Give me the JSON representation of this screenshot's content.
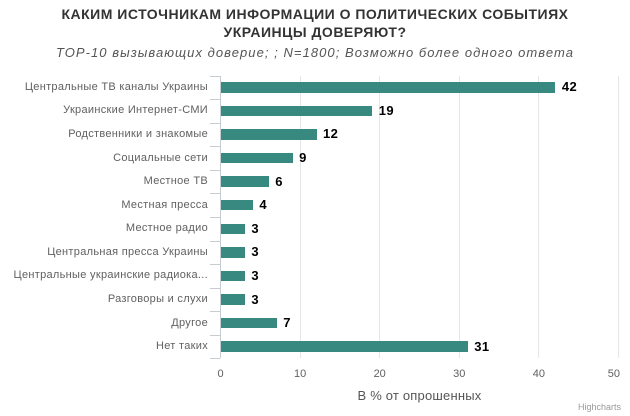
{
  "title": "КАКИМ ИСТОЧНИКАМ ИНФОРМАЦИИ О ПОЛИТИЧЕСКИХ СОБЫТИЯХ УКРАИНЦЫ ДОВЕРЯЮТ?",
  "subtitle": "TOP-10 вызывающих доверие; ; N=1800; Возможно более одного ответа",
  "credits": "Highcharts",
  "chart_data": {
    "type": "bar",
    "title": "КАКИМ ИСТОЧНИКАМ ИНФОРМАЦИИ О ПОЛИТИЧЕСКИХ СОБЫТИЯХ УКРАИНЦЫ ДОВЕРЯЮТ?",
    "subtitle": "TOP-10 вызывающих доверие; ; N=1800; Возможно более одного ответа",
    "categories": [
      "Центральные ТВ каналы Украины",
      "Украинские Интернет-СМИ",
      "Родственники и знакомые",
      "Социальные сети",
      "Местное ТВ",
      "Местная пресса",
      "Местное радио",
      "Центральная пресса Украины",
      "Центральные украинские радиока...",
      "Разговоры и слухи",
      "Другое",
      "Нет таких"
    ],
    "values": [
      42,
      19,
      12,
      9,
      6,
      4,
      3,
      3,
      3,
      3,
      7,
      31
    ],
    "xlabel": "В % от опрошенных",
    "ylabel": "",
    "xlim": [
      0,
      50
    ],
    "x_ticks": [
      0,
      10,
      20,
      30,
      40,
      50
    ],
    "bar_color": "#388a80",
    "grid": true,
    "legend": false
  }
}
